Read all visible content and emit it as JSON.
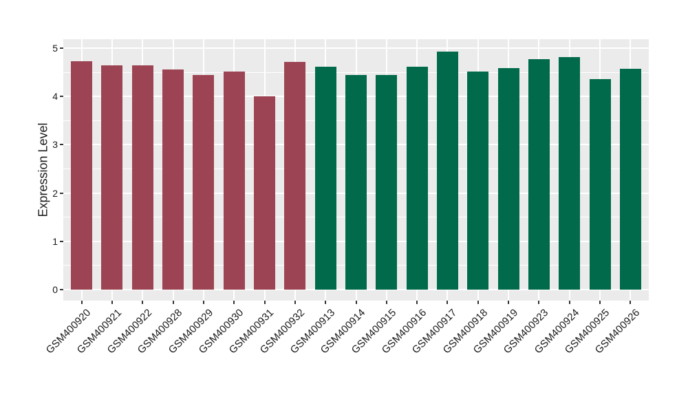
{
  "chart_data": {
    "type": "bar",
    "title": "",
    "xlabel": "",
    "ylabel": "Expression Level",
    "ylim": [
      0,
      5.2
    ],
    "yticks": [
      0,
      1,
      2,
      3,
      4,
      5
    ],
    "y_tick_labels": [
      "0",
      "1",
      "2",
      "3",
      "4",
      "5"
    ],
    "y_minor_gridlines": [
      0.5,
      1.5,
      2.5,
      3.5,
      4.5
    ],
    "grid": "on",
    "legend_position": "none",
    "categories": [
      "GSM400920",
      "GSM400921",
      "GSM400922",
      "GSM400928",
      "GSM400929",
      "GSM400930",
      "GSM400931",
      "GSM400932",
      "GSM400913",
      "GSM400914",
      "GSM400915",
      "GSM400916",
      "GSM400917",
      "GSM400918",
      "GSM400919",
      "GSM400923",
      "GSM400924",
      "GSM400925",
      "GSM400926"
    ],
    "values": [
      4.73,
      4.64,
      4.65,
      4.56,
      4.44,
      4.52,
      4.0,
      4.71,
      4.61,
      4.44,
      4.45,
      4.61,
      4.93,
      4.52,
      4.58,
      4.77,
      4.82,
      4.36,
      4.57
    ],
    "bar_colors": [
      "#9C4453",
      "#9C4453",
      "#9C4453",
      "#9C4453",
      "#9C4453",
      "#9C4453",
      "#9C4453",
      "#9C4453",
      "#006A4A",
      "#006A4A",
      "#006A4A",
      "#006A4A",
      "#006A4A",
      "#006A4A",
      "#006A4A",
      "#006A4A",
      "#006A4A",
      "#006A4A",
      "#006A4A"
    ],
    "group_colors": {
      "left_group": "#9C4453",
      "right_group": "#006A4A"
    },
    "style_colors": {
      "panel_background": "#EBEBEB",
      "gridline": "#FFFFFF",
      "tick_mark": "#333333",
      "axis_text": "#1A1A1A"
    }
  }
}
